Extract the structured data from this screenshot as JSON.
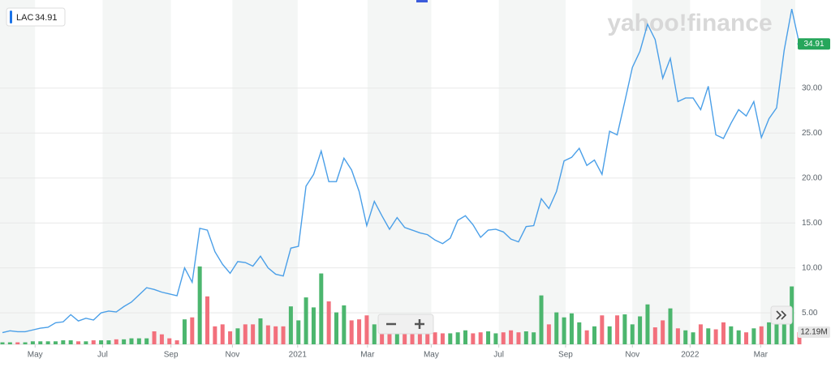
{
  "chart_data": {
    "type": "line",
    "watermark": "yahoo!finance",
    "xlim": [
      0,
      105
    ],
    "xticks": [
      {
        "value": 4.3,
        "label": "May"
      },
      {
        "value": 13.2,
        "label": "Jul"
      },
      {
        "value": 22.2,
        "label": "Sep"
      },
      {
        "value": 30.3,
        "label": "Nov"
      },
      {
        "value": 38.9,
        "label": "2021"
      },
      {
        "value": 48.1,
        "label": "Mar"
      },
      {
        "value": 56.5,
        "label": "May"
      },
      {
        "value": 65.4,
        "label": "Jul"
      },
      {
        "value": 74.2,
        "label": "Sep"
      },
      {
        "value": 83.0,
        "label": "Nov"
      },
      {
        "value": 90.6,
        "label": "2022"
      },
      {
        "value": 99.9,
        "label": "Mar"
      }
    ],
    "ylim": [
      1.5,
      39.8
    ],
    "yticks": [
      {
        "value": 5,
        "label": "5.00"
      },
      {
        "value": 10,
        "label": "10.00"
      },
      {
        "value": 15,
        "label": "15.00"
      },
      {
        "value": 20,
        "label": "20.00"
      },
      {
        "value": 25,
        "label": "25.00"
      },
      {
        "value": 30,
        "label": "30.00"
      }
    ],
    "y2lim": [
      0,
      345
    ],
    "up_color": "#4cb66e",
    "down_color": "#f2707c",
    "series": [
      {
        "name": "LAC",
        "color": "#4a9fe8",
        "values": [
          2.8,
          3.0,
          2.9,
          2.9,
          3.1,
          3.3,
          3.4,
          3.9,
          4.0,
          4.8,
          4.1,
          4.4,
          4.2,
          5.0,
          5.2,
          5.1,
          5.7,
          6.2,
          7.0,
          7.8,
          7.6,
          7.3,
          7.1,
          6.9,
          10.0,
          8.4,
          14.4,
          14.2,
          11.8,
          10.4,
          9.4,
          10.7,
          10.6,
          10.2,
          11.3,
          10.0,
          9.3,
          9.1,
          12.2,
          12.4,
          19.1,
          20.4,
          23.0,
          19.6,
          19.6,
          22.2,
          20.9,
          18.5,
          14.7,
          17.4,
          15.8,
          14.3,
          15.6,
          14.5,
          14.2,
          13.9,
          13.7,
          13.1,
          12.7,
          13.3,
          15.3,
          15.8,
          14.8,
          13.4,
          14.2,
          14.3,
          14.0,
          13.2,
          12.9,
          14.6,
          14.7,
          17.7,
          16.6,
          18.5,
          21.9,
          22.3,
          23.3,
          21.4,
          22.0,
          20.4,
          25.2,
          24.8,
          28.5,
          32.3,
          34.1,
          37.1,
          35.4,
          31.1,
          33.3,
          28.5,
          28.9,
          28.9,
          27.6,
          30.2,
          24.8,
          24.4,
          26.1,
          27.6,
          26.9,
          28.5,
          24.5,
          26.6,
          27.8,
          34.2,
          38.8,
          34.91
        ]
      },
      {
        "name": "Volume",
        "axis": "y2",
        "values": [
          2,
          2,
          2,
          2,
          3,
          3,
          3,
          3,
          4,
          4,
          3,
          3,
          4,
          4,
          4,
          5,
          5,
          6,
          6,
          6,
          13,
          10,
          6,
          4,
          25,
          27,
          78,
          48,
          18,
          20,
          13,
          16,
          20,
          20,
          26,
          19,
          18,
          18,
          38,
          24,
          47,
          37,
          71,
          43,
          32,
          39,
          24,
          25,
          29,
          20,
          12,
          14,
          12,
          13,
          11,
          12,
          13,
          12,
          11,
          11,
          12,
          14,
          11,
          12,
          13,
          11,
          12,
          14,
          12,
          13,
          12,
          49,
          20,
          32,
          27,
          31,
          22,
          14,
          18,
          29,
          18,
          29,
          30,
          20,
          28,
          40,
          17,
          24,
          36,
          16,
          14,
          12,
          20,
          16,
          15,
          22,
          18,
          14,
          12,
          16,
          18,
          22,
          20,
          24,
          58,
          12.19
        ]
      }
    ],
    "volume_label": "12.19M"
  }
}
